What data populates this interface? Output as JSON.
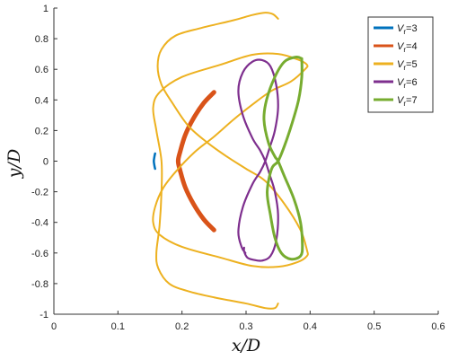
{
  "chart_data": {
    "type": "line",
    "xlabel": "x/D",
    "ylabel": "y/D",
    "xlim": [
      0,
      0.6
    ],
    "ylim": [
      -1,
      1
    ],
    "x_ticks": [
      "0",
      "0.1",
      "0.2",
      "0.3",
      "0.4",
      "0.5",
      "0.6"
    ],
    "y_ticks": [
      "1",
      "0.8",
      "0.6",
      "0.4",
      "0.2",
      "0",
      "-0.2",
      "-0.4",
      "-0.6",
      "-0.8",
      "-1"
    ],
    "grid": false,
    "legend_position": "top-right",
    "series": [
      {
        "name": "V_r=3",
        "label_main": "V",
        "label_sub": "r",
        "label_rest": "=3",
        "color": "#0072BD",
        "width": 2.5,
        "points": [
          [
            0.158,
            0.05
          ],
          [
            0.157,
            0.03
          ],
          [
            0.156,
            0.0
          ],
          [
            0.157,
            -0.03
          ],
          [
            0.158,
            -0.05
          ]
        ]
      },
      {
        "name": "V_r=4",
        "label_main": "V",
        "label_sub": "r",
        "label_rest": "=4",
        "color": "#D95319",
        "width": 5,
        "points": [
          [
            0.25,
            0.45
          ],
          [
            0.234,
            0.38
          ],
          [
            0.218,
            0.28
          ],
          [
            0.205,
            0.17
          ],
          [
            0.197,
            0.06
          ],
          [
            0.194,
            0.0
          ],
          [
            0.197,
            -0.06
          ],
          [
            0.205,
            -0.17
          ],
          [
            0.218,
            -0.28
          ],
          [
            0.234,
            -0.38
          ],
          [
            0.25,
            -0.45
          ]
        ]
      },
      {
        "name": "V_r=5",
        "label_main": "V",
        "label_sub": "r",
        "label_rest": "=5",
        "color": "#EDB120",
        "width": 2,
        "points": [
          [
            0.35,
            0.93
          ],
          [
            0.342,
            0.96
          ],
          [
            0.33,
            0.97
          ],
          [
            0.31,
            0.955
          ],
          [
            0.28,
            0.92
          ],
          [
            0.23,
            0.87
          ],
          [
            0.19,
            0.82
          ],
          [
            0.168,
            0.73
          ],
          [
            0.162,
            0.62
          ],
          [
            0.168,
            0.5
          ],
          [
            0.185,
            0.38
          ],
          [
            0.21,
            0.23
          ],
          [
            0.24,
            0.12
          ],
          [
            0.27,
            0.03
          ],
          [
            0.3,
            -0.05
          ],
          [
            0.33,
            -0.13
          ],
          [
            0.36,
            -0.28
          ],
          [
            0.385,
            -0.45
          ],
          [
            0.395,
            -0.58
          ],
          [
            0.395,
            -0.62
          ],
          [
            0.38,
            -0.66
          ],
          [
            0.35,
            -0.69
          ],
          [
            0.31,
            -0.685
          ],
          [
            0.26,
            -0.63
          ],
          [
            0.2,
            -0.56
          ],
          [
            0.165,
            -0.48
          ],
          [
            0.155,
            -0.4
          ],
          [
            0.158,
            -0.3
          ],
          [
            0.17,
            -0.18
          ],
          [
            0.19,
            -0.07
          ],
          [
            0.22,
            0.06
          ],
          [
            0.25,
            0.16
          ],
          [
            0.28,
            0.27
          ],
          [
            0.31,
            0.37
          ],
          [
            0.34,
            0.46
          ],
          [
            0.37,
            0.52
          ],
          [
            0.392,
            0.6
          ],
          [
            0.395,
            0.63
          ],
          [
            0.38,
            0.665
          ],
          [
            0.35,
            0.7
          ],
          [
            0.31,
            0.695
          ],
          [
            0.26,
            0.63
          ],
          [
            0.2,
            0.55
          ],
          [
            0.165,
            0.45
          ],
          [
            0.155,
            0.35
          ],
          [
            0.16,
            0.2
          ],
          [
            0.168,
            0.0
          ],
          [
            0.168,
            -0.2
          ],
          [
            0.165,
            -0.42
          ],
          [
            0.16,
            -0.6
          ],
          [
            0.163,
            -0.7
          ],
          [
            0.18,
            -0.8
          ],
          [
            0.21,
            -0.85
          ],
          [
            0.25,
            -0.89
          ],
          [
            0.3,
            -0.93
          ],
          [
            0.33,
            -0.96
          ],
          [
            0.345,
            -0.96
          ],
          [
            0.35,
            -0.93
          ]
        ]
      },
      {
        "name": "V_r=6",
        "label_main": "V",
        "label_sub": "r",
        "label_rest": "=6",
        "color": "#7E2F8E",
        "width": 2.2,
        "points": [
          [
            0.299,
            -0.6
          ],
          [
            0.293,
            -0.56
          ],
          [
            0.288,
            -0.46
          ],
          [
            0.295,
            -0.3
          ],
          [
            0.31,
            -0.15
          ],
          [
            0.322,
            -0.07
          ],
          [
            0.33,
            0.0
          ],
          [
            0.337,
            0.09
          ],
          [
            0.345,
            0.2
          ],
          [
            0.35,
            0.35
          ],
          [
            0.347,
            0.5
          ],
          [
            0.338,
            0.62
          ],
          [
            0.325,
            0.66
          ],
          [
            0.31,
            0.65
          ],
          [
            0.295,
            0.58
          ],
          [
            0.288,
            0.46
          ],
          [
            0.295,
            0.3
          ],
          [
            0.31,
            0.15
          ],
          [
            0.322,
            0.07
          ],
          [
            0.33,
            0.0
          ],
          [
            0.337,
            -0.09
          ],
          [
            0.345,
            -0.2
          ],
          [
            0.35,
            -0.35
          ],
          [
            0.347,
            -0.52
          ],
          [
            0.338,
            -0.62
          ],
          [
            0.325,
            -0.65
          ],
          [
            0.312,
            -0.645
          ],
          [
            0.302,
            -0.63
          ],
          [
            0.297,
            -0.59
          ],
          [
            0.297,
            -0.565
          ]
        ]
      },
      {
        "name": "V_r=7",
        "label_main": "V",
        "label_sub": "r",
        "label_rest": "=7",
        "color": "#77AC30",
        "width": 3,
        "points": [
          [
            0.387,
            0.67
          ],
          [
            0.378,
            0.68
          ],
          [
            0.36,
            0.65
          ],
          [
            0.345,
            0.55
          ],
          [
            0.332,
            0.4
          ],
          [
            0.328,
            0.27
          ],
          [
            0.335,
            0.12
          ],
          [
            0.345,
            0.03
          ],
          [
            0.35,
            0.0
          ],
          [
            0.36,
            -0.1
          ],
          [
            0.375,
            -0.25
          ],
          [
            0.385,
            -0.4
          ],
          [
            0.388,
            -0.55
          ],
          [
            0.385,
            -0.62
          ],
          [
            0.37,
            -0.64
          ],
          [
            0.355,
            -0.6
          ],
          [
            0.345,
            -0.5
          ],
          [
            0.338,
            -0.35
          ],
          [
            0.333,
            -0.2
          ],
          [
            0.34,
            -0.05
          ],
          [
            0.35,
            0.0
          ],
          [
            0.36,
            0.1
          ],
          [
            0.372,
            0.25
          ],
          [
            0.382,
            0.4
          ],
          [
            0.387,
            0.55
          ],
          [
            0.387,
            0.67
          ]
        ]
      }
    ]
  }
}
